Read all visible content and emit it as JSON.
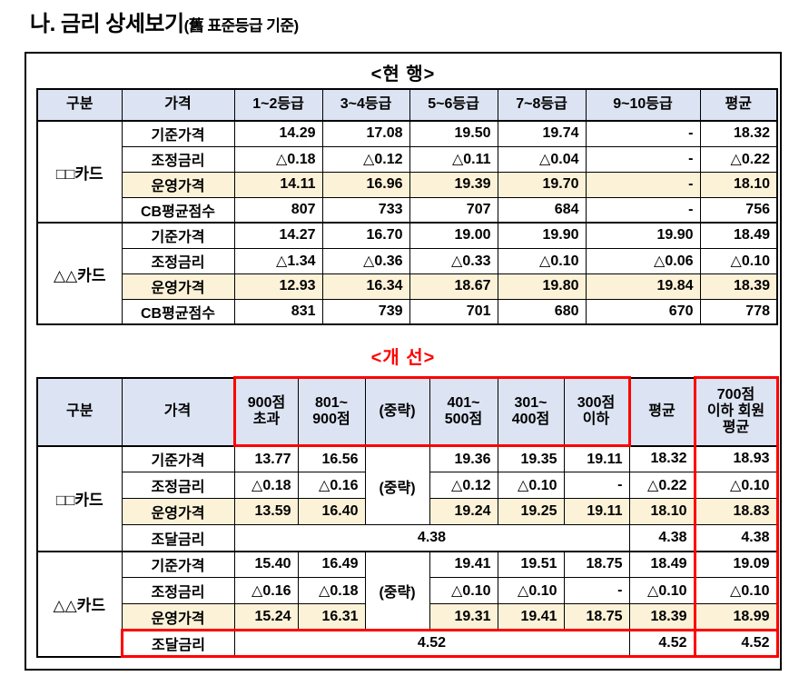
{
  "page": {
    "title_main": "나. 금리 상세보기",
    "title_sub": "(舊  표준등급 기준)"
  },
  "colors": {
    "header_bg": "#dce3f2",
    "highlight_bg": "#fcf2d8",
    "red_accent": "#ff0000"
  },
  "current_table": {
    "title": "<현 행>",
    "columns": [
      "구분",
      "가격",
      "1~2등급",
      "3~4등급",
      "5~6등급",
      "7~8등급",
      "9~10등급",
      "평균"
    ],
    "groups": [
      {
        "name": "□□카드",
        "rows": [
          {
            "label": "기준가격",
            "values": [
              "14.29",
              "17.08",
              "19.50",
              "19.74",
              "-",
              "18.32"
            ],
            "highlight": false
          },
          {
            "label": "조정금리",
            "values": [
              "△0.18",
              "△0.12",
              "△0.11",
              "△0.04",
              "-",
              "△0.22"
            ],
            "highlight": false
          },
          {
            "label": "운영가격",
            "values": [
              "14.11",
              "16.96",
              "19.39",
              "19.70",
              "-",
              "18.10"
            ],
            "highlight": true
          },
          {
            "label": "CB평균점수",
            "values": [
              "807",
              "733",
              "707",
              "684",
              "-",
              "756"
            ],
            "highlight": false
          }
        ]
      },
      {
        "name": "△△카드",
        "rows": [
          {
            "label": "기준가격",
            "values": [
              "14.27",
              "16.70",
              "19.00",
              "19.90",
              "19.90",
              "18.49"
            ],
            "highlight": false
          },
          {
            "label": "조정금리",
            "values": [
              "△1.34",
              "△0.36",
              "△0.33",
              "△0.10",
              "△0.06",
              "△0.10"
            ],
            "highlight": false
          },
          {
            "label": "운영가격",
            "values": [
              "12.93",
              "16.34",
              "18.67",
              "19.80",
              "19.84",
              "18.39"
            ],
            "highlight": true
          },
          {
            "label": "CB평균점수",
            "values": [
              "831",
              "739",
              "701",
              "680",
              "670",
              "778"
            ],
            "highlight": false
          }
        ]
      }
    ]
  },
  "improved_table": {
    "title": "<개 선>",
    "omitted_label": "(중략)",
    "columns": [
      "구분",
      "가격",
      "900점\n초과",
      "801~\n900점",
      "(중략)",
      "401~\n500점",
      "301~\n400점",
      "300점\n이하",
      "평균",
      "700점\n이하 회원\n평균"
    ],
    "groups": [
      {
        "name": "□□카드",
        "rows": [
          {
            "label": "기준가격",
            "scores": [
              "13.77",
              "16.56",
              "19.36",
              "19.35",
              "19.11"
            ],
            "avg": "18.32",
            "member": "18.93",
            "highlight": false
          },
          {
            "label": "조정금리",
            "scores": [
              "△0.18",
              "△0.16",
              "△0.12",
              "△0.10",
              "-"
            ],
            "avg": "△0.22",
            "member": "△0.10",
            "highlight": false
          },
          {
            "label": "운영가격",
            "scores": [
              "13.59",
              "16.40",
              "19.24",
              "19.25",
              "19.11"
            ],
            "avg": "18.10",
            "member": "18.83",
            "highlight": true
          }
        ],
        "funding_row": {
          "label": "조달금리",
          "value": "4.38",
          "avg": "4.38",
          "member": "4.38",
          "red_box": false
        }
      },
      {
        "name": "△△카드",
        "rows": [
          {
            "label": "기준가격",
            "scores": [
              "15.40",
              "16.49",
              "19.41",
              "19.51",
              "18.75"
            ],
            "avg": "18.49",
            "member": "19.09",
            "highlight": false
          },
          {
            "label": "조정금리",
            "scores": [
              "△0.16",
              "△0.18",
              "△0.10",
              "△0.10",
              "-"
            ],
            "avg": "△0.10",
            "member": "△0.10",
            "highlight": false
          },
          {
            "label": "운영가격",
            "scores": [
              "15.24",
              "16.31",
              "19.31",
              "19.41",
              "18.75"
            ],
            "avg": "18.39",
            "member": "18.99",
            "highlight": true
          }
        ],
        "funding_row": {
          "label": "조달금리",
          "value": "4.52",
          "avg": "4.52",
          "member": "4.52",
          "red_box": true
        }
      }
    ]
  }
}
